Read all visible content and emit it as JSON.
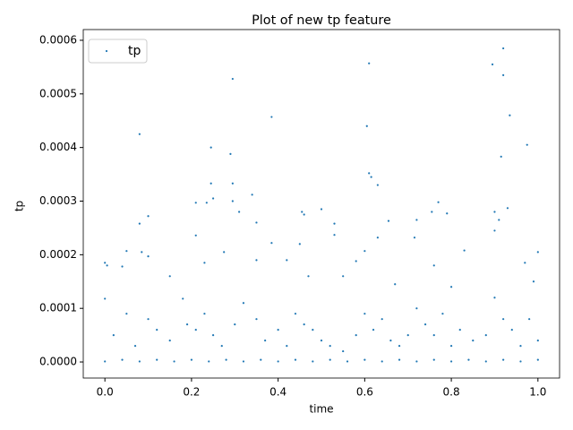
{
  "chart_data": {
    "type": "scatter",
    "title": "Plot of new tp feature",
    "x_label": "time",
    "y_label": "tp",
    "xlim": [
      -0.05,
      1.05
    ],
    "xticks": [
      {
        "value": 0,
        "label": "0.0"
      },
      {
        "value": 0.2,
        "label": "0.2"
      },
      {
        "value": 0.4,
        "label": "0.4"
      },
      {
        "value": 0.6,
        "label": "0.6"
      },
      {
        "value": 0.8,
        "label": "0.8"
      },
      {
        "value": 1,
        "label": "1.0"
      }
    ],
    "ylim": [
      -3e-05,
      0.00062
    ],
    "yticks": [
      {
        "value": 0,
        "label": "0.0000"
      },
      {
        "value": 0.0001,
        "label": "0.0001"
      },
      {
        "value": 0.0002,
        "label": "0.0002"
      },
      {
        "value": 0.0003,
        "label": "0.0003"
      },
      {
        "value": 0.0004,
        "label": "0.0004"
      },
      {
        "value": 0.0005,
        "label": "0.0005"
      },
      {
        "value": 0.0006,
        "label": "0.0006"
      }
    ],
    "legend": "upper left",
    "series": [
      {
        "name": "tp",
        "color": "#1f77b4",
        "x": [
          0.92,
          0.61,
          0.895,
          0.92,
          0.295,
          0.935,
          0.385,
          0.605,
          0.08,
          0.975,
          0.245,
          0.29,
          0.915,
          0.61,
          0.615,
          0.245,
          0.295,
          0.63,
          0.34,
          0.25,
          0.295,
          0.21,
          0.235,
          0.77,
          0.5,
          0.93,
          0.455,
          0.9,
          0.31,
          0.46,
          0.755,
          0.79,
          0.1,
          0.08,
          0.35,
          0.53,
          0.655,
          0.72,
          0.91,
          0.21,
          0.53,
          0.9,
          0.385,
          0.45,
          0.63,
          0.715,
          0.05,
          0.085,
          0.275,
          0.6,
          0.83,
          1.0,
          0.0,
          0.005,
          0.04,
          0.1,
          0.23,
          0.35,
          0.42,
          0.58,
          0.76,
          0.97,
          0.0,
          0.15,
          0.18,
          0.47,
          0.55,
          0.67,
          0.8,
          0.99,
          0.02,
          0.05,
          0.07,
          0.1,
          0.12,
          0.15,
          0.19,
          0.21,
          0.23,
          0.25,
          0.27,
          0.3,
          0.32,
          0.35,
          0.37,
          0.4,
          0.42,
          0.44,
          0.46,
          0.48,
          0.5,
          0.52,
          0.55,
          0.58,
          0.6,
          0.62,
          0.64,
          0.66,
          0.68,
          0.7,
          0.72,
          0.74,
          0.76,
          0.78,
          0.8,
          0.82,
          0.85,
          0.88,
          0.9,
          0.92,
          0.94,
          0.96,
          0.98,
          1.0,
          0.0,
          0.04,
          0.08,
          0.12,
          0.16,
          0.2,
          0.24,
          0.28,
          0.32,
          0.36,
          0.4,
          0.44,
          0.48,
          0.52,
          0.56,
          0.6,
          0.64,
          0.68,
          0.72,
          0.76,
          0.8,
          0.84,
          0.88,
          0.92,
          0.96,
          1.0
        ],
        "values": [
          0.000585,
          0.000557,
          0.000555,
          0.000535,
          0.000528,
          0.00046,
          0.000457,
          0.00044,
          0.000425,
          0.000405,
          0.0004,
          0.000388,
          0.000383,
          0.000352,
          0.000345,
          0.000333,
          0.000333,
          0.00033,
          0.000312,
          0.000305,
          0.0003,
          0.000297,
          0.000297,
          0.000298,
          0.000285,
          0.000287,
          0.00028,
          0.00028,
          0.00028,
          0.000275,
          0.00028,
          0.000277,
          0.000272,
          0.000258,
          0.00026,
          0.000258,
          0.000263,
          0.000265,
          0.000265,
          0.000236,
          0.000237,
          0.000245,
          0.000222,
          0.00022,
          0.000232,
          0.000232,
          0.000207,
          0.000205,
          0.000205,
          0.000207,
          0.000208,
          0.000205,
          0.000185,
          0.00018,
          0.000178,
          0.000197,
          0.000185,
          0.00019,
          0.00019,
          0.000188,
          0.00018,
          0.000185,
          0.000118,
          0.00016,
          0.000118,
          0.00016,
          0.00016,
          0.000145,
          0.00014,
          0.00015,
          5e-05,
          9e-05,
          3e-05,
          8e-05,
          6e-05,
          4e-05,
          7e-05,
          6e-05,
          9e-05,
          5e-05,
          3e-05,
          7e-05,
          0.00011,
          8e-05,
          4e-05,
          6e-05,
          3e-05,
          9e-05,
          7e-05,
          6e-05,
          4e-05,
          3e-05,
          2e-05,
          5e-05,
          9e-05,
          6e-05,
          8e-05,
          4e-05,
          3e-05,
          5e-05,
          0.0001,
          7e-05,
          5e-05,
          9e-05,
          3e-05,
          6e-05,
          4e-05,
          5e-05,
          0.00012,
          8e-05,
          6e-05,
          3e-05,
          8e-05,
          4e-05,
          1e-06,
          4e-06,
          1e-06,
          4e-06,
          1e-06,
          4e-06,
          1e-06,
          4e-06,
          1e-06,
          4e-06,
          1e-06,
          4e-06,
          1e-06,
          4e-06,
          1e-06,
          4e-06,
          1e-06,
          4e-06,
          1e-06,
          4e-06,
          1e-06,
          4e-06,
          1e-06,
          4e-06,
          1e-06,
          4e-06
        ]
      }
    ]
  }
}
